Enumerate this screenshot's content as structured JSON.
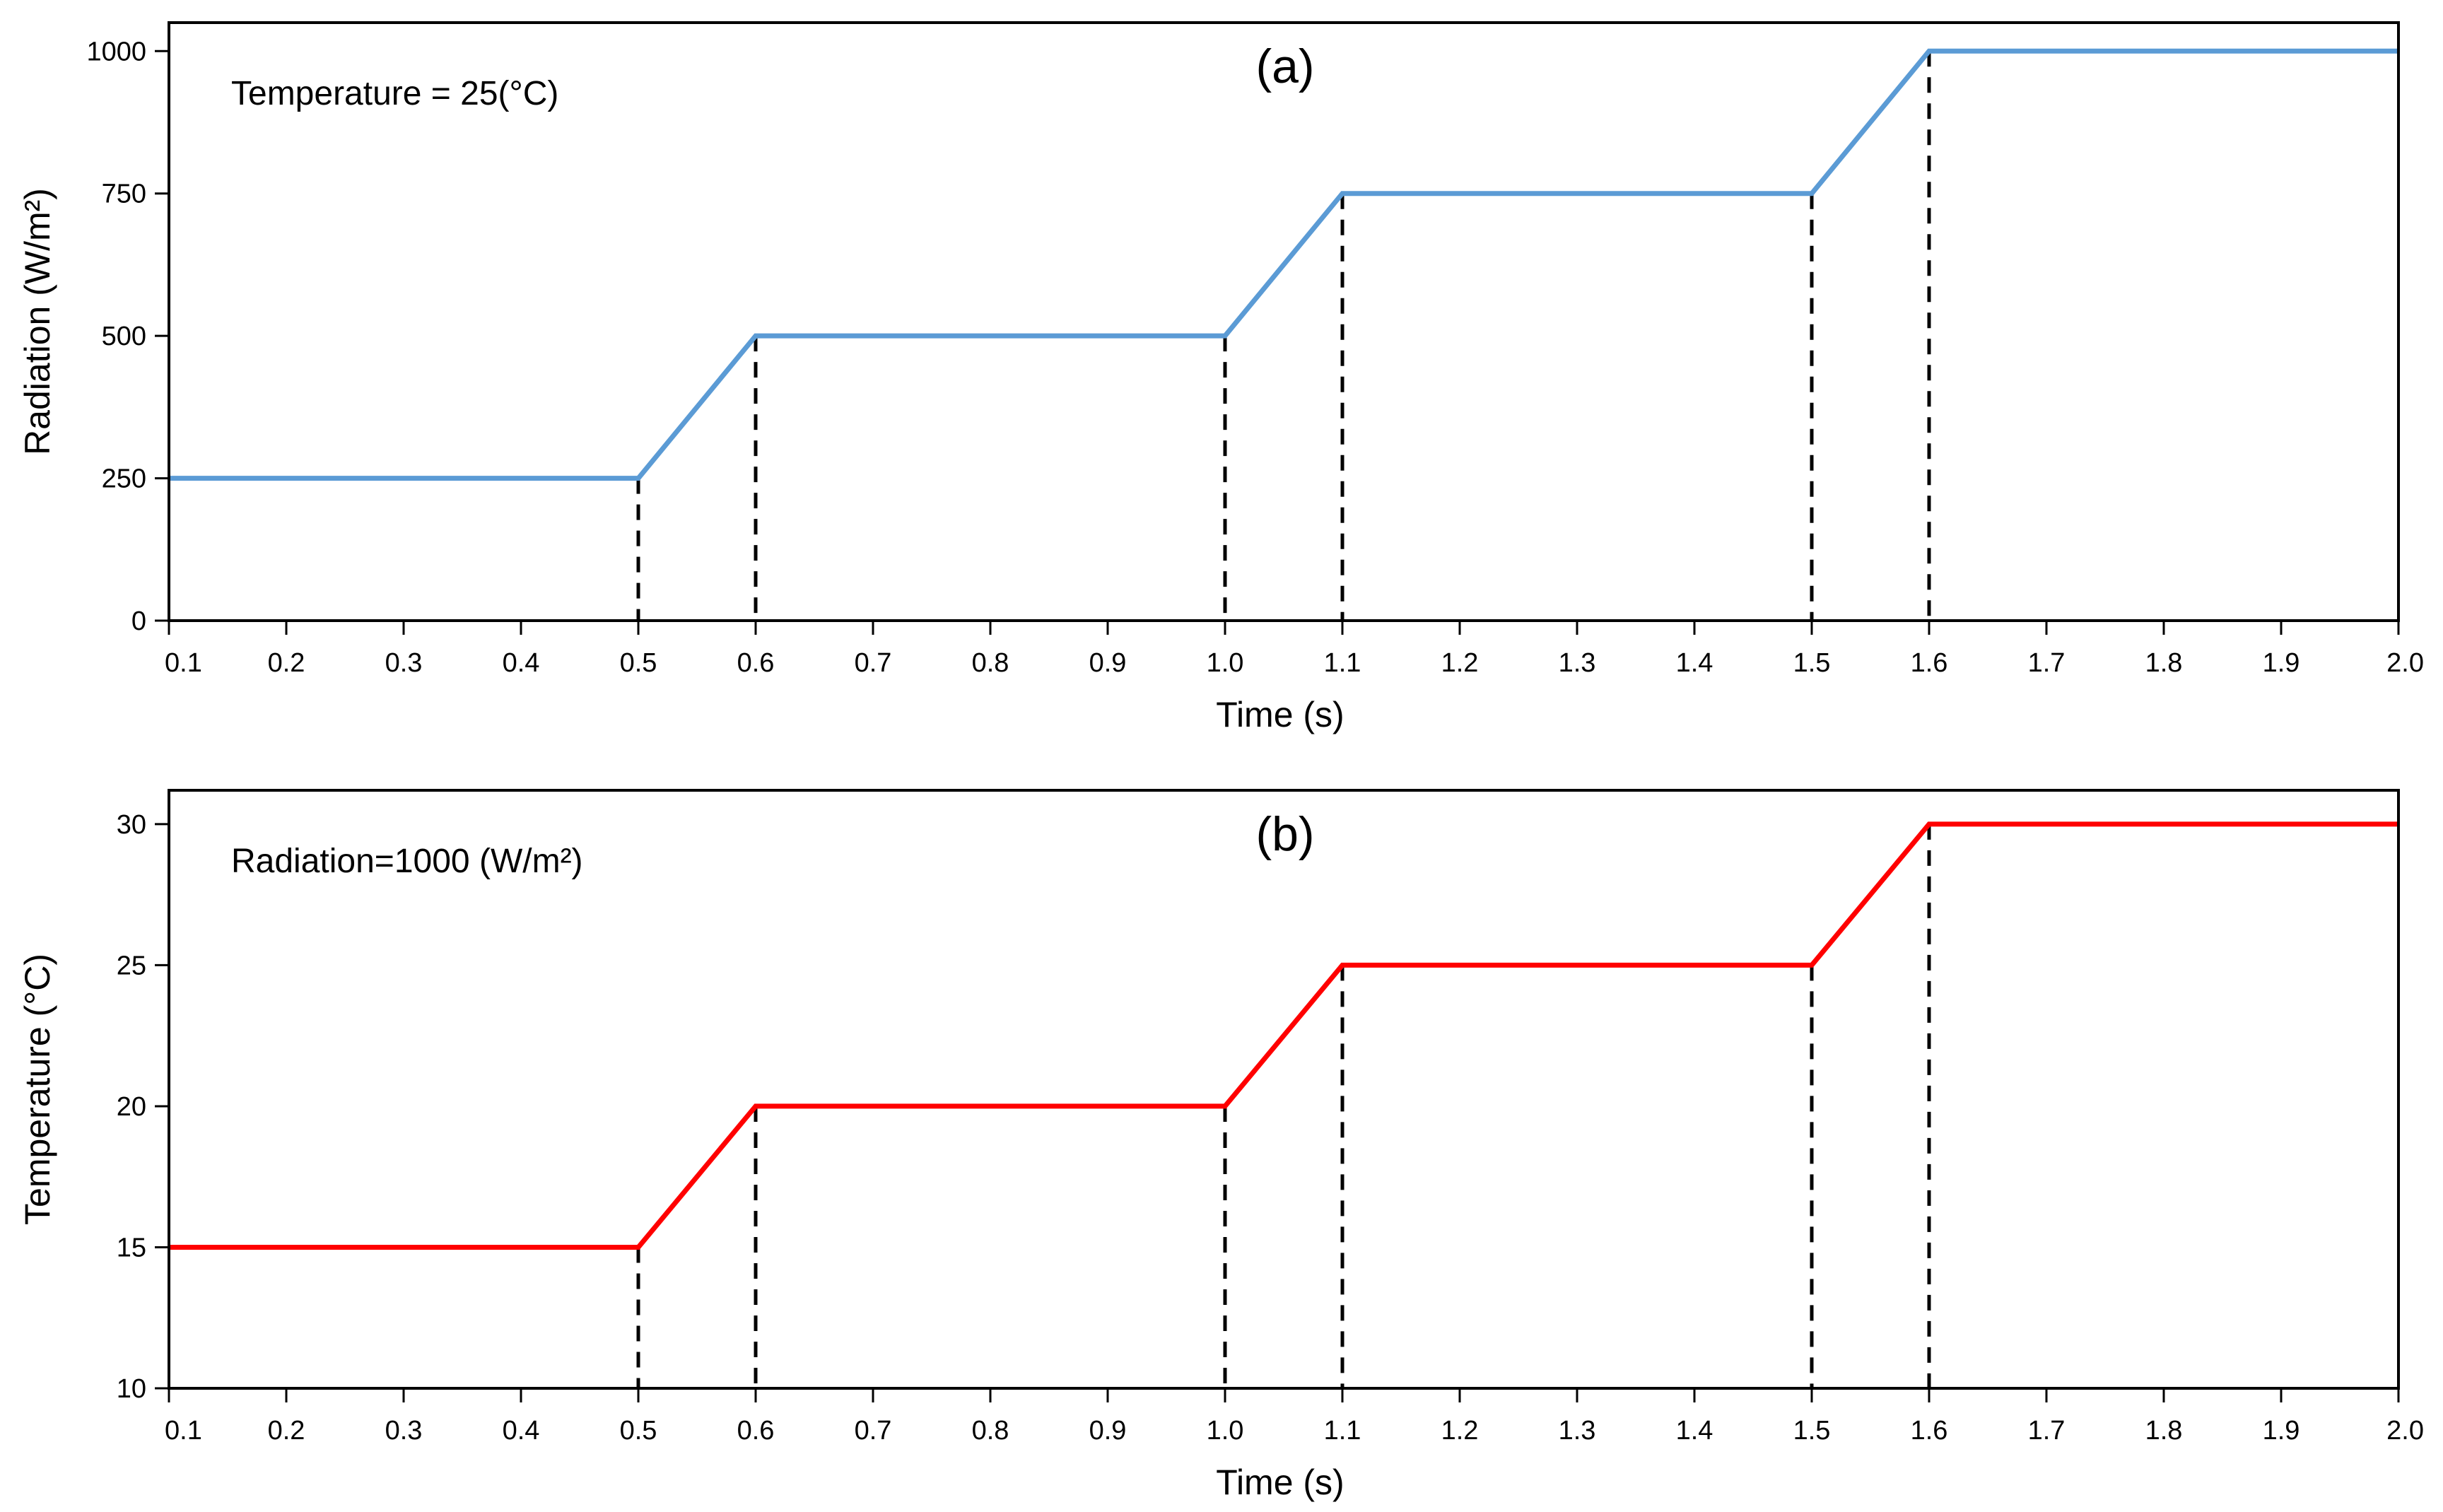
{
  "chart_data": [
    {
      "type": "line",
      "panel_label": "(a)",
      "annotation": "Temperature = 25(°C)",
      "xlabel": "Time (s)",
      "ylabel": "Radiation (W/m²)",
      "xlim": [
        0.1,
        2.0
      ],
      "ylim": [
        0,
        1050
      ],
      "x_ticks": [
        0.1,
        0.2,
        0.3,
        0.4,
        0.5,
        0.6,
        0.7,
        0.8,
        0.9,
        1.0,
        1.1,
        1.2,
        1.3,
        1.4,
        1.5,
        1.6,
        1.7,
        1.8,
        1.9,
        2.0
      ],
      "x_tick_labels": [
        "0.1",
        "0.2",
        "0.3",
        "0.4",
        "0.5",
        "0.6",
        "0.7",
        "0.8",
        "0.9",
        "1.0",
        "1.1",
        "1.2",
        "1.3",
        "1.4",
        "1.5",
        "1.6",
        "1.7",
        "1.8",
        "1.9",
        "2.0"
      ],
      "y_ticks": [
        0,
        250,
        500,
        750,
        1000
      ],
      "y_tick_labels": [
        "0",
        "250",
        "500",
        "750",
        "1000"
      ],
      "series": [
        {
          "name": "Radiation",
          "color": "#5b9bd5",
          "x": [
            0.1,
            0.5,
            0.6,
            1.0,
            1.1,
            1.5,
            1.6,
            2.0
          ],
          "y": [
            250,
            250,
            500,
            500,
            750,
            750,
            1000,
            1000
          ]
        }
      ],
      "dashed_markers": [
        0.5,
        0.6,
        1.0,
        1.1,
        1.5,
        1.6
      ],
      "grid": false
    },
    {
      "type": "line",
      "panel_label": "(b)",
      "annotation": "Radiation=1000 (W/m²)",
      "xlabel": "Time (s)",
      "ylabel": "Temperature (°C)",
      "xlim": [
        0.1,
        2.0
      ],
      "ylim": [
        10,
        31.2
      ],
      "x_ticks": [
        0.1,
        0.2,
        0.3,
        0.4,
        0.5,
        0.6,
        0.7,
        0.8,
        0.9,
        1.0,
        1.1,
        1.2,
        1.3,
        1.4,
        1.5,
        1.6,
        1.7,
        1.8,
        1.9,
        2.0
      ],
      "x_tick_labels": [
        "0.1",
        "0.2",
        "0.3",
        "0.4",
        "0.5",
        "0.6",
        "0.7",
        "0.8",
        "0.9",
        "1.0",
        "1.1",
        "1.2",
        "1.3",
        "1.4",
        "1.5",
        "1.6",
        "1.7",
        "1.8",
        "1.9",
        "2.0"
      ],
      "y_ticks": [
        10,
        15,
        20,
        25,
        30
      ],
      "y_tick_labels": [
        "10",
        "15",
        "20",
        "25",
        "30"
      ],
      "series": [
        {
          "name": "Temperature",
          "color": "#ff0000",
          "x": [
            0.1,
            0.5,
            0.6,
            1.0,
            1.1,
            1.5,
            1.6,
            2.0
          ],
          "y": [
            15,
            15,
            20,
            20,
            25,
            25,
            30,
            30
          ]
        }
      ],
      "dashed_markers": [
        0.5,
        0.6,
        1.0,
        1.1,
        1.5,
        1.6
      ],
      "grid": false
    }
  ]
}
